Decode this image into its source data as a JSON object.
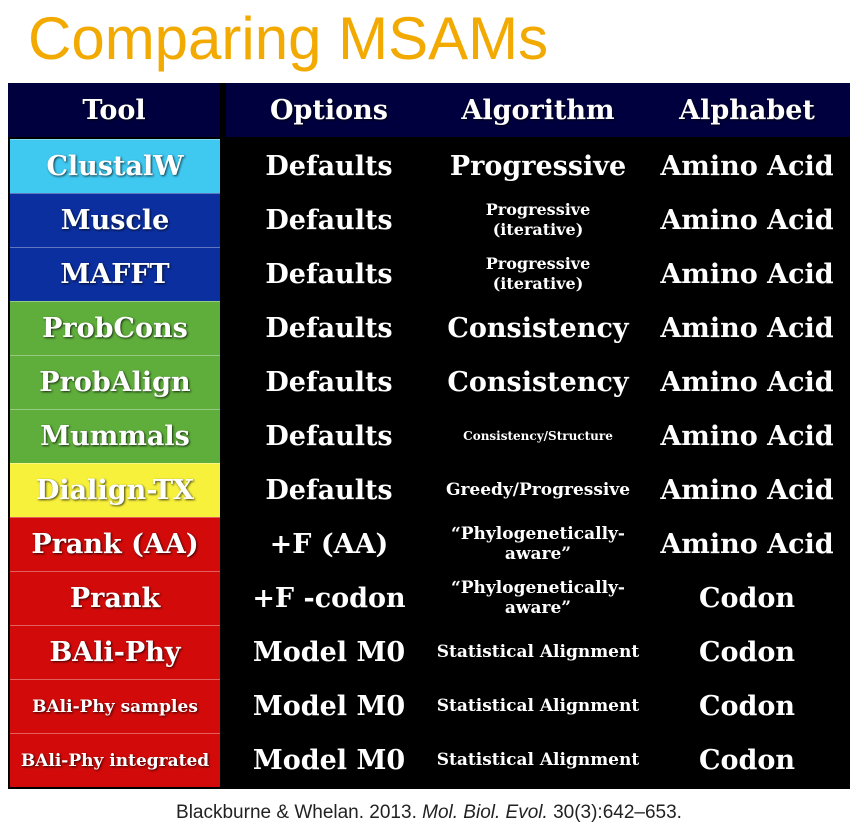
{
  "title": "Comparing MSAMs",
  "headers": {
    "tool": "Tool",
    "options": "Options",
    "algorithm": "Algorithm",
    "alphabet": "Alphabet"
  },
  "colors": {
    "title": "#f2a900",
    "header_bg": "#00003f",
    "cyan": "#3fc8f0",
    "blue": "#0b2f9f",
    "green": "#5fae3c",
    "yellow": "#f7f13c",
    "red": "#d20a0a"
  },
  "rows": [
    {
      "tool": "ClustalW",
      "options": "Defaults",
      "algorithm": "Progressive",
      "alphabet": "Amino Acid"
    },
    {
      "tool": "Muscle",
      "options": "Defaults",
      "algorithm": "Progressive\n(iterative)",
      "alphabet": "Amino Acid"
    },
    {
      "tool": "MAFFT",
      "options": "Defaults",
      "algorithm": "Progressive\n(iterative)",
      "alphabet": "Amino Acid"
    },
    {
      "tool": "ProbCons",
      "options": "Defaults",
      "algorithm": "Consistency",
      "alphabet": "Amino Acid"
    },
    {
      "tool": "ProbAlign",
      "options": "Defaults",
      "algorithm": "Consistency",
      "alphabet": "Amino Acid"
    },
    {
      "tool": "Mummals",
      "options": "Defaults",
      "algorithm": "Consistency/Structure",
      "alphabet": "Amino Acid"
    },
    {
      "tool": "Dialign-TX",
      "options": "Defaults",
      "algorithm": "Greedy/Progressive",
      "alphabet": "Amino Acid"
    },
    {
      "tool": "Prank (AA)",
      "options": "+F (AA)",
      "algorithm": "“Phylogenetically-\naware”",
      "alphabet": "Amino Acid"
    },
    {
      "tool": "Prank",
      "options": "+F -codon",
      "algorithm": "“Phylogenetically-\naware”",
      "alphabet": "Codon"
    },
    {
      "tool": "BAli-Phy",
      "options": "Model M0",
      "algorithm": "Statistical Alignment",
      "alphabet": "Codon"
    },
    {
      "tool": "BAli-Phy samples",
      "options": "Model M0",
      "algorithm": "Statistical Alignment",
      "alphabet": "Codon"
    },
    {
      "tool": "BAli-Phy integrated",
      "options": "Model M0",
      "algorithm": "Statistical Alignment",
      "alphabet": "Codon"
    }
  ],
  "citation": {
    "authors": "Blackburne & Whelan. 2013.",
    "journal": "Mol. Biol. Evol.",
    "ref": "30(3):642–653."
  }
}
